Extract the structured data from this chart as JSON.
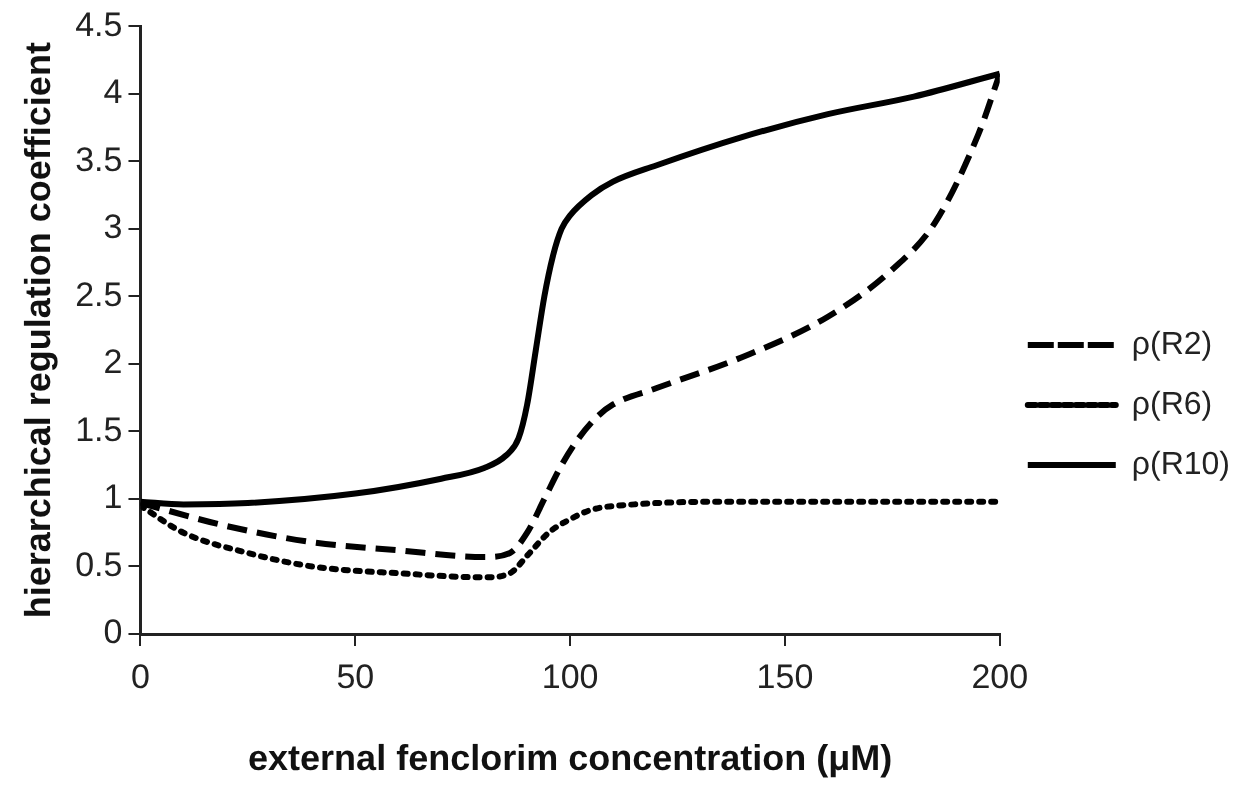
{
  "chart_data": {
    "type": "line",
    "xlabel": "external fenclorim concentration (μM)",
    "ylabel": "hierarchical regulation coefficient",
    "xlim": [
      0,
      200
    ],
    "xticks": [
      0,
      50,
      100,
      150,
      200
    ],
    "ylim": [
      0,
      4.5
    ],
    "yticks": [
      0,
      0.5,
      1,
      1.5,
      2,
      2.5,
      3,
      3.5,
      4,
      4.5
    ],
    "grid": false,
    "legend": "right",
    "marker": "none",
    "series": [
      {
        "name": "ρ(R2)",
        "color": "#000000",
        "line_style": "dashed",
        "x": [
          0,
          20,
          40,
          60,
          80,
          86,
          90,
          94,
          98,
          102,
          106,
          110,
          120,
          140,
          160,
          175,
          185,
          195,
          200
        ],
        "values": [
          0.97,
          0.8,
          0.68,
          0.62,
          0.57,
          0.6,
          0.75,
          1.0,
          1.25,
          1.45,
          1.6,
          1.7,
          1.82,
          2.05,
          2.35,
          2.7,
          3.05,
          3.7,
          4.15
        ]
      },
      {
        "name": "ρ(R6)",
        "color": "#000000",
        "line_style": "dotted",
        "x": [
          0,
          10,
          25,
          40,
          60,
          80,
          86,
          90,
          95,
          100,
          105,
          115,
          140,
          200
        ],
        "values": [
          0.95,
          0.75,
          0.6,
          0.5,
          0.45,
          0.42,
          0.45,
          0.58,
          0.75,
          0.85,
          0.92,
          0.96,
          0.98,
          0.98
        ]
      },
      {
        "name": "ρ(R10)",
        "color": "#000000",
        "line_style": "solid",
        "x": [
          0,
          10,
          25,
          50,
          70,
          80,
          85,
          88,
          90,
          92,
          94,
          96,
          98,
          100,
          105,
          110,
          120,
          140,
          160,
          180,
          200
        ],
        "values": [
          0.98,
          0.96,
          0.97,
          1.04,
          1.15,
          1.23,
          1.32,
          1.45,
          1.7,
          2.1,
          2.5,
          2.8,
          3.0,
          3.1,
          3.25,
          3.35,
          3.47,
          3.68,
          3.85,
          3.98,
          4.15
        ]
      }
    ]
  }
}
